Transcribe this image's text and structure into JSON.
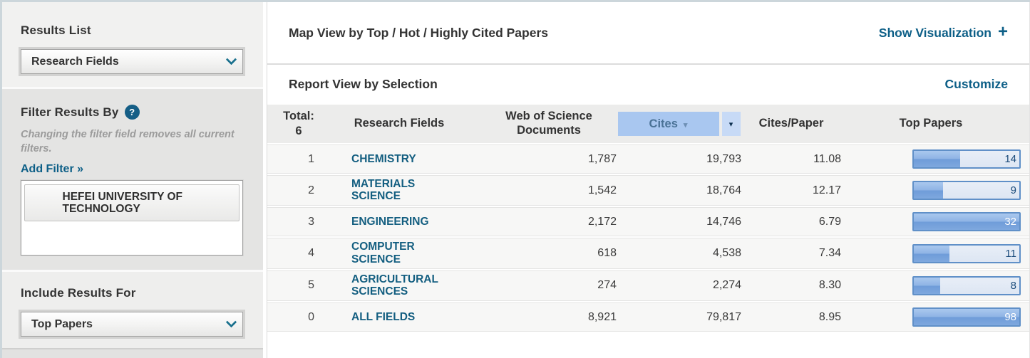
{
  "colors": {
    "link_blue": "#0d5f87",
    "field_link": "#135e80",
    "sort_highlight": "#a9c7f0",
    "bar_border": "#6090c8",
    "bar_fill": "#7ea8de",
    "help_badge": "#155e86"
  },
  "sidebar": {
    "results_list": {
      "title": "Results List",
      "dropdown_value": "Research Fields"
    },
    "filter": {
      "title": "Filter Results By",
      "help_icon": "?",
      "note": "Changing the filter field removes all current filters.",
      "add_filter_label": "Add Filter »",
      "active_filters": [
        {
          "label": "HEFEI UNIVERSITY OF TECHNOLOGY"
        }
      ]
    },
    "include_results": {
      "title": "Include Results For",
      "dropdown_value": "Top Papers"
    }
  },
  "main": {
    "map_view": {
      "title": "Map View by Top / Hot / Highly Cited Papers",
      "action_label": "Show Visualization",
      "action_icon": "+"
    },
    "report_view": {
      "title": "Report View by Selection",
      "action_label": "Customize"
    },
    "table": {
      "total_label": "Total:",
      "total_value": "6",
      "headers": {
        "research_fields": "Research Fields",
        "documents": "Web of Science Documents",
        "cites": "Cites",
        "cites_sort_icon": "▾",
        "cites_dropdown_icon": "▾",
        "cites_per_paper": "Cites/Paper",
        "top_papers": "Top Papers"
      },
      "sorted_by": "Cites",
      "rows": [
        {
          "rank": "1",
          "field": "CHEMISTRY",
          "documents": "1,787",
          "cites": "19,793",
          "cites_per_paper": "11.08",
          "top_papers": "14",
          "bar_pct": 44
        },
        {
          "rank": "2",
          "field": "MATERIALS SCIENCE",
          "documents": "1,542",
          "cites": "18,764",
          "cites_per_paper": "12.17",
          "top_papers": "9",
          "bar_pct": 28
        },
        {
          "rank": "3",
          "field": "ENGINEERING",
          "documents": "2,172",
          "cites": "14,746",
          "cites_per_paper": "6.79",
          "top_papers": "32",
          "bar_pct": 100
        },
        {
          "rank": "4",
          "field": "COMPUTER SCIENCE",
          "documents": "618",
          "cites": "4,538",
          "cites_per_paper": "7.34",
          "top_papers": "11",
          "bar_pct": 34
        },
        {
          "rank": "5",
          "field": "AGRICULTURAL SCIENCES",
          "documents": "274",
          "cites": "2,274",
          "cites_per_paper": "8.30",
          "top_papers": "8",
          "bar_pct": 25
        },
        {
          "rank": "0",
          "field": "ALL FIELDS",
          "documents": "8,921",
          "cites": "79,817",
          "cites_per_paper": "8.95",
          "top_papers": "98",
          "bar_pct": 100
        }
      ]
    }
  }
}
